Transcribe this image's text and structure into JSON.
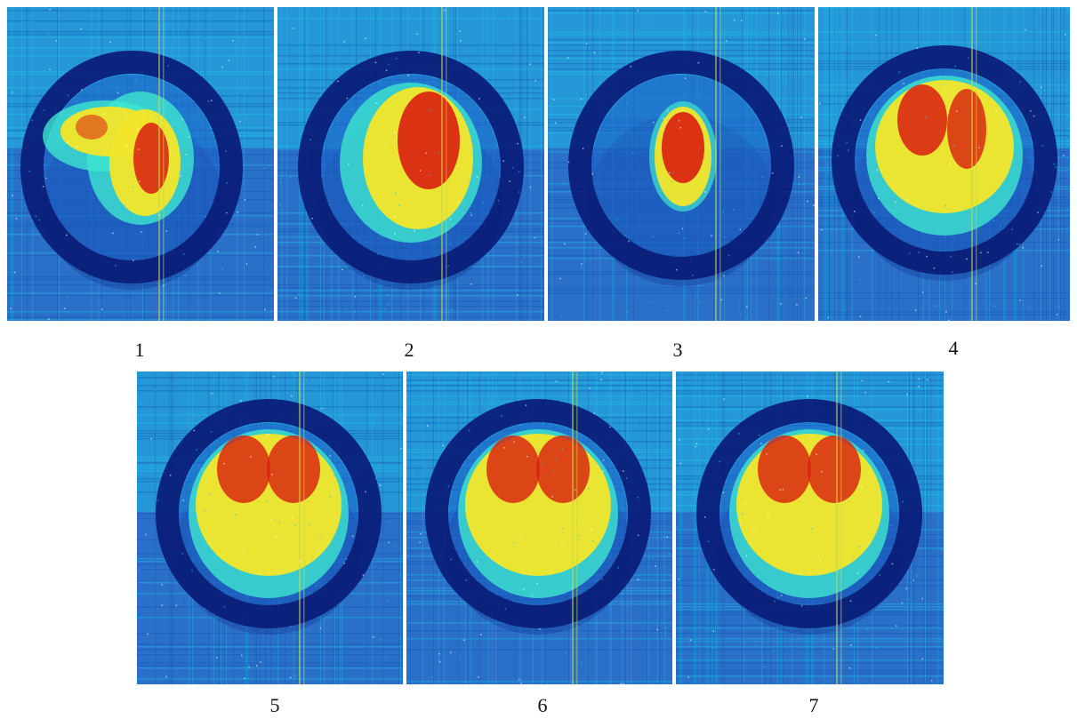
{
  "figure": {
    "panels": [
      {
        "label": "1",
        "blob": "split-left-lobe"
      },
      {
        "label": "2",
        "blob": "oval-right"
      },
      {
        "label": "3",
        "blob": "small-oval-center"
      },
      {
        "label": "4",
        "blob": "double-lobe"
      },
      {
        "label": "5",
        "blob": "full-double-lobe"
      },
      {
        "label": "6",
        "blob": "full-double-lobe"
      },
      {
        "label": "7",
        "blob": "full-double-lobe"
      }
    ],
    "colors": {
      "background_blue": "#2a6fc8",
      "noise_cyan": "#1fc8e8",
      "ring_navy": "#0a1f7a",
      "core_red": "#d81e10",
      "mid_yellow": "#f3e52a",
      "edge_cyan": "#3ee6d0",
      "stripe_yellow": "#c8d84a"
    }
  }
}
